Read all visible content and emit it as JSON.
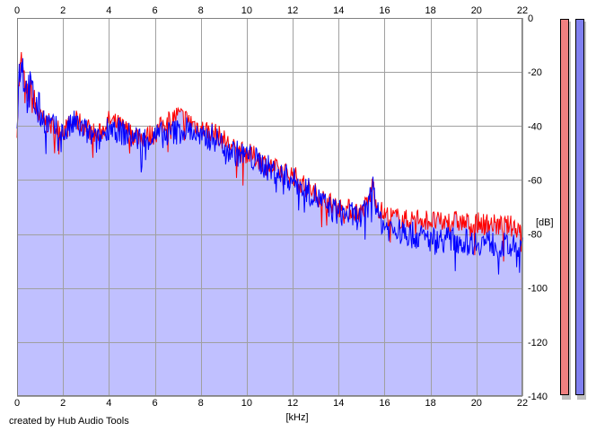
{
  "credit": "created by Hub Audio Tools",
  "chart_data": {
    "type": "line",
    "xlabel": "[kHz]",
    "ylabel": "[dB]",
    "xlim": [
      0,
      22
    ],
    "ylim": [
      -140,
      0
    ],
    "x_ticks": [
      0,
      2,
      4,
      6,
      8,
      10,
      12,
      14,
      16,
      18,
      20,
      22
    ],
    "y_ticks": [
      0,
      -20,
      -40,
      -60,
      -80,
      -100,
      -120,
      -140
    ],
    "grid": true,
    "fill_color": "#c0c0ff",
    "series": [
      {
        "color": "#ff0000",
        "x": [
          0,
          0.1,
          0.2,
          0.3,
          0.4,
          0.6,
          0.8,
          1.0,
          1.5,
          2.0,
          2.5,
          3.0,
          3.5,
          4.0,
          4.5,
          5.0,
          5.5,
          6.0,
          6.5,
          7.0,
          7.5,
          8.0,
          8.5,
          9.0,
          9.5,
          10.0,
          10.5,
          11.0,
          11.5,
          12.0,
          12.5,
          13.0,
          13.5,
          14.0,
          14.5,
          15.0,
          15.3,
          15.5,
          15.7,
          16.0,
          16.5,
          17.0,
          17.5,
          18.0,
          18.5,
          19.0,
          19.5,
          20.0,
          20.5,
          21.0,
          21.5,
          22.0
        ],
        "y": [
          -38,
          -22,
          -16,
          -24,
          -30,
          -28,
          -33,
          -37,
          -40,
          -42,
          -38,
          -40,
          -44,
          -38,
          -40,
          -43,
          -44,
          -43,
          -38,
          -36,
          -38,
          -41,
          -42,
          -45,
          -49,
          -50,
          -52,
          -55,
          -57,
          -58,
          -62,
          -65,
          -68,
          -70,
          -71,
          -72,
          -68,
          -61,
          -70,
          -73,
          -74,
          -75,
          -74,
          -75,
          -76,
          -75,
          -76,
          -76,
          -76,
          -77,
          -77,
          -78
        ]
      },
      {
        "color": "#0000ff",
        "x": [
          0,
          0.1,
          0.2,
          0.3,
          0.4,
          0.6,
          0.8,
          1.0,
          1.5,
          2.0,
          2.5,
          3.0,
          3.5,
          4.0,
          4.5,
          5.0,
          5.5,
          6.0,
          6.5,
          7.0,
          7.5,
          8.0,
          8.5,
          9.0,
          9.5,
          10.0,
          10.5,
          11.0,
          11.5,
          12.0,
          12.5,
          13.0,
          13.5,
          14.0,
          14.5,
          15.0,
          15.3,
          15.5,
          15.7,
          16.0,
          16.5,
          17.0,
          17.5,
          18.0,
          18.5,
          19.0,
          19.5,
          20.0,
          20.5,
          21.0,
          21.5,
          22.0
        ],
        "y": [
          -36,
          -20,
          -14,
          -22,
          -28,
          -27,
          -32,
          -36,
          -40,
          -43,
          -39,
          -42,
          -46,
          -40,
          -42,
          -44,
          -45,
          -44,
          -43,
          -42,
          -41,
          -45,
          -44,
          -47,
          -50,
          -51,
          -53,
          -56,
          -58,
          -60,
          -63,
          -66,
          -70,
          -72,
          -73,
          -74,
          -70,
          -60,
          -73,
          -77,
          -79,
          -80,
          -81,
          -82,
          -82,
          -82,
          -83,
          -83,
          -83,
          -84,
          -85,
          -86
        ]
      }
    ],
    "level_meters": [
      {
        "color": "#f08080"
      },
      {
        "color": "#8080f0"
      }
    ]
  }
}
